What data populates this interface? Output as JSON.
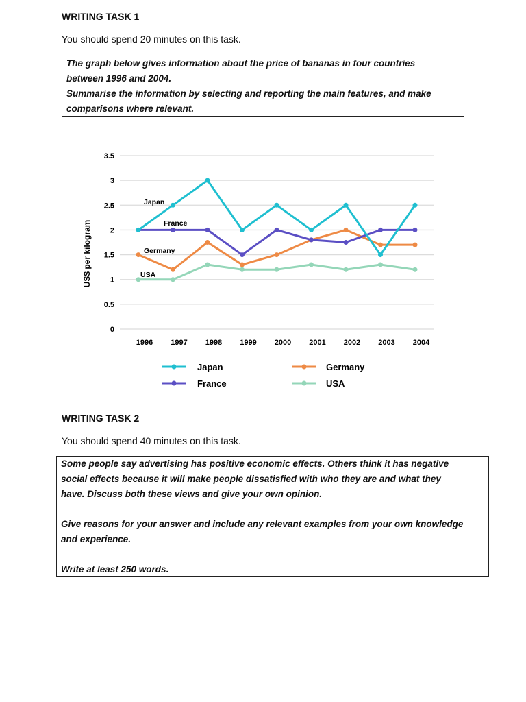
{
  "task1": {
    "heading": "WRITING TASK 1",
    "instruction": "You should spend 20 minutes on this task.",
    "prompt_lines": [
      "The graph below gives information about the price of bananas in four countries",
      "between 1996 and 2004.",
      "Summarise the information by selecting and reporting the main features, and make",
      "comparisons where relevant."
    ]
  },
  "chart_data": {
    "type": "line",
    "title": "",
    "xlabel": "",
    "ylabel": "US$ per kilogram",
    "categories": [
      "1996",
      "1997",
      "1998",
      "1999",
      "2000",
      "2001",
      "2002",
      "2003",
      "2004"
    ],
    "yticks": [
      "0",
      "0.5",
      "1",
      "1.5",
      "2",
      "2.5",
      "3",
      "3.5"
    ],
    "ylim": [
      0,
      3.5
    ],
    "grid": true,
    "legend_position": "bottom",
    "series": [
      {
        "name": "Japan",
        "color": "#1fbfd0",
        "values": [
          2,
          2.5,
          3,
          2,
          2.5,
          2,
          2.5,
          1.5,
          2.5
        ]
      },
      {
        "name": "France",
        "color": "#5b4fc4",
        "values": [
          2,
          2,
          2,
          1.5,
          2,
          1.8,
          1.75,
          2,
          2
        ]
      },
      {
        "name": "Germany",
        "color": "#ee8a45",
        "values": [
          1.5,
          1.2,
          1.75,
          1.3,
          1.5,
          1.8,
          2,
          1.7,
          1.7
        ]
      },
      {
        "name": "USA",
        "color": "#94d6b8",
        "values": [
          1,
          1,
          1.3,
          1.2,
          1.2,
          1.3,
          1.2,
          1.3,
          1.2
        ]
      }
    ],
    "inline_labels": [
      "Japan",
      "France",
      "Germany",
      "USA"
    ]
  },
  "task2": {
    "heading": "WRITING TASK 2",
    "instruction": "You should spend 40 minutes on this task.",
    "prompt_lines": [
      "Some people say advertising has positive economic effects. Others think it has negative",
      "social effects because it will make people dissatisfied with who they are and what they",
      "have.  Discuss both these views and give your own opinion.",
      "",
      "Give reasons for your answer and include any relevant examples from your own knowledge",
      "and experience.",
      "",
      "Write at least 250 words."
    ]
  }
}
